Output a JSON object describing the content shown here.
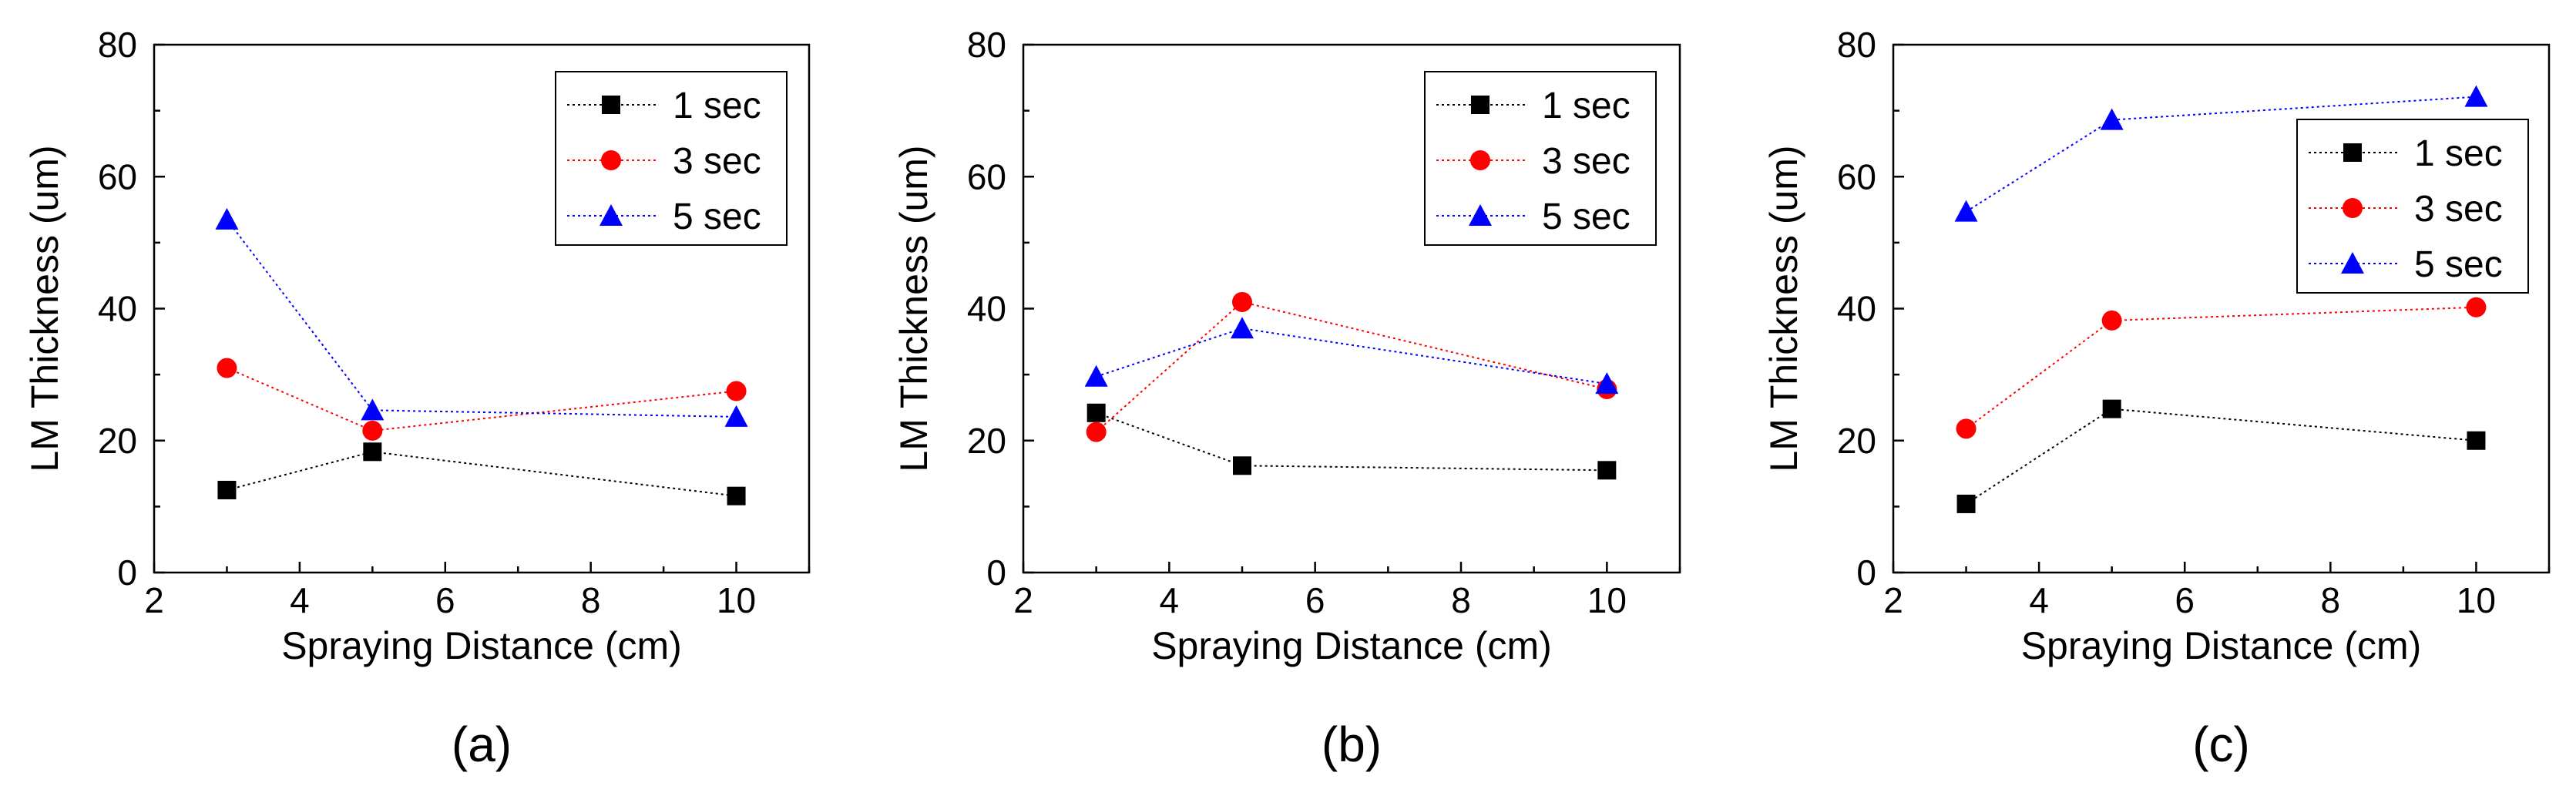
{
  "colors": {
    "series_1": "#000000",
    "series_3": "#ff0000",
    "series_5": "#0000ff",
    "axis": "#000000",
    "background": "#ffffff"
  },
  "chart_data": [
    {
      "type": "line",
      "panel_label": "(a)",
      "title": "",
      "xlabel": "Spraying Distance (cm)",
      "ylabel": "LM Thickness (um)",
      "xlim": [
        2,
        11
      ],
      "ylim": [
        0,
        80
      ],
      "xticks": [
        2,
        4,
        6,
        8,
        10
      ],
      "yticks": [
        0,
        20,
        40,
        60,
        80
      ],
      "legend_position": "top-right",
      "x": [
        3,
        5,
        10
      ],
      "series": [
        {
          "name": "1 sec",
          "marker": "square",
          "color": "#000000",
          "values": [
            12.5,
            18.3,
            11.6
          ]
        },
        {
          "name": "3 sec",
          "marker": "circle",
          "color": "#ff0000",
          "values": [
            31.0,
            21.5,
            27.5
          ]
        },
        {
          "name": "5 sec",
          "marker": "triangle",
          "color": "#0000ff",
          "values": [
            53.5,
            24.6,
            23.6
          ]
        }
      ]
    },
    {
      "type": "line",
      "panel_label": "(b)",
      "title": "",
      "xlabel": "Spraying Distance (cm)",
      "ylabel": "LM Thickness (um)",
      "xlim": [
        2,
        11
      ],
      "ylim": [
        0,
        80
      ],
      "xticks": [
        2,
        4,
        6,
        8,
        10
      ],
      "yticks": [
        0,
        20,
        40,
        60,
        80
      ],
      "legend_position": "top-right",
      "x": [
        3,
        5,
        10
      ],
      "series": [
        {
          "name": "1 sec",
          "marker": "square",
          "color": "#000000",
          "values": [
            24.2,
            16.2,
            15.5
          ]
        },
        {
          "name": "3 sec",
          "marker": "circle",
          "color": "#ff0000",
          "values": [
            21.3,
            41.0,
            27.8
          ]
        },
        {
          "name": "5 sec",
          "marker": "triangle",
          "color": "#0000ff",
          "values": [
            29.7,
            37.0,
            28.6
          ]
        }
      ]
    },
    {
      "type": "line",
      "panel_label": "(c)",
      "title": "",
      "xlabel": "Spraying Distance (cm)",
      "ylabel": "LM Thickness (um)",
      "xlim": [
        2,
        11
      ],
      "ylim": [
        0,
        80
      ],
      "xticks": [
        2,
        4,
        6,
        8,
        10
      ],
      "yticks": [
        0,
        20,
        40,
        60,
        80
      ],
      "legend_position": "upper-right",
      "x": [
        3,
        5,
        10
      ],
      "series": [
        {
          "name": "1 sec",
          "marker": "square",
          "color": "#000000",
          "values": [
            10.4,
            24.8,
            20.0
          ]
        },
        {
          "name": "3 sec",
          "marker": "circle",
          "color": "#ff0000",
          "values": [
            21.8,
            38.2,
            40.2
          ]
        },
        {
          "name": "5 sec",
          "marker": "triangle",
          "color": "#0000ff",
          "values": [
            54.7,
            68.6,
            72.1
          ]
        }
      ]
    }
  ]
}
